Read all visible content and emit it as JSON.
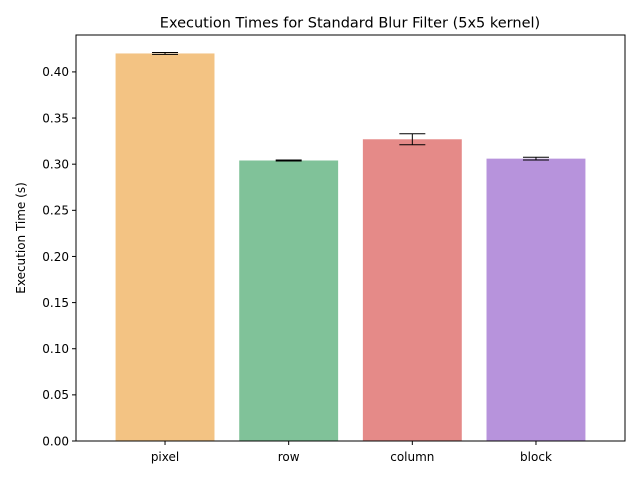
{
  "chart_data": {
    "type": "bar",
    "title": "Execution Times for Standard Blur Filter (5x5 kernel)",
    "xlabel": "",
    "ylabel": "Execution Time (s)",
    "categories": [
      "pixel",
      "row",
      "column",
      "block"
    ],
    "values": [
      0.42,
      0.304,
      0.327,
      0.306
    ],
    "errors": [
      0.001,
      0.0005,
      0.006,
      0.0015
    ],
    "colors": [
      "#f3c383",
      "#80c299",
      "#e58a88",
      "#b793dc"
    ],
    "ylim": [
      0,
      0.44
    ],
    "yticks": [
      0.0,
      0.05,
      0.1,
      0.15,
      0.2,
      0.25,
      0.3,
      0.35,
      0.4
    ],
    "ytick_labels": [
      "0.00",
      "0.05",
      "0.10",
      "0.15",
      "0.20",
      "0.25",
      "0.30",
      "0.35",
      "0.40"
    ],
    "grid": false,
    "legend": "none"
  }
}
